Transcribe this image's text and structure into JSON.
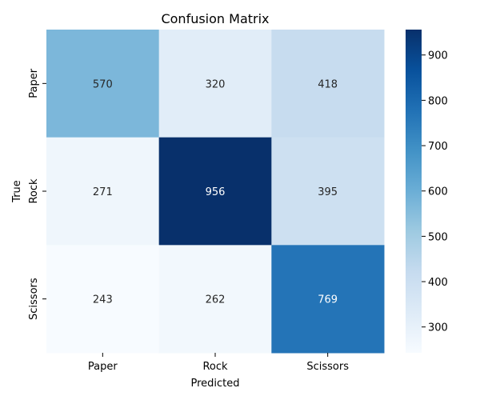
{
  "chart_data": {
    "type": "heatmap",
    "title": "Confusion Matrix",
    "xlabel": "Predicted",
    "ylabel": "True",
    "x_categories": [
      "Paper",
      "Rock",
      "Scissors"
    ],
    "y_categories": [
      "Paper",
      "Rock",
      "Scissors"
    ],
    "values": [
      [
        570,
        320,
        418
      ],
      [
        271,
        956,
        395
      ],
      [
        243,
        262,
        769
      ]
    ],
    "colormap": "Blues",
    "colorbar": {
      "vmin": 243,
      "vmax": 956,
      "ticks": [
        300,
        400,
        500,
        600,
        700,
        800,
        900
      ]
    }
  }
}
